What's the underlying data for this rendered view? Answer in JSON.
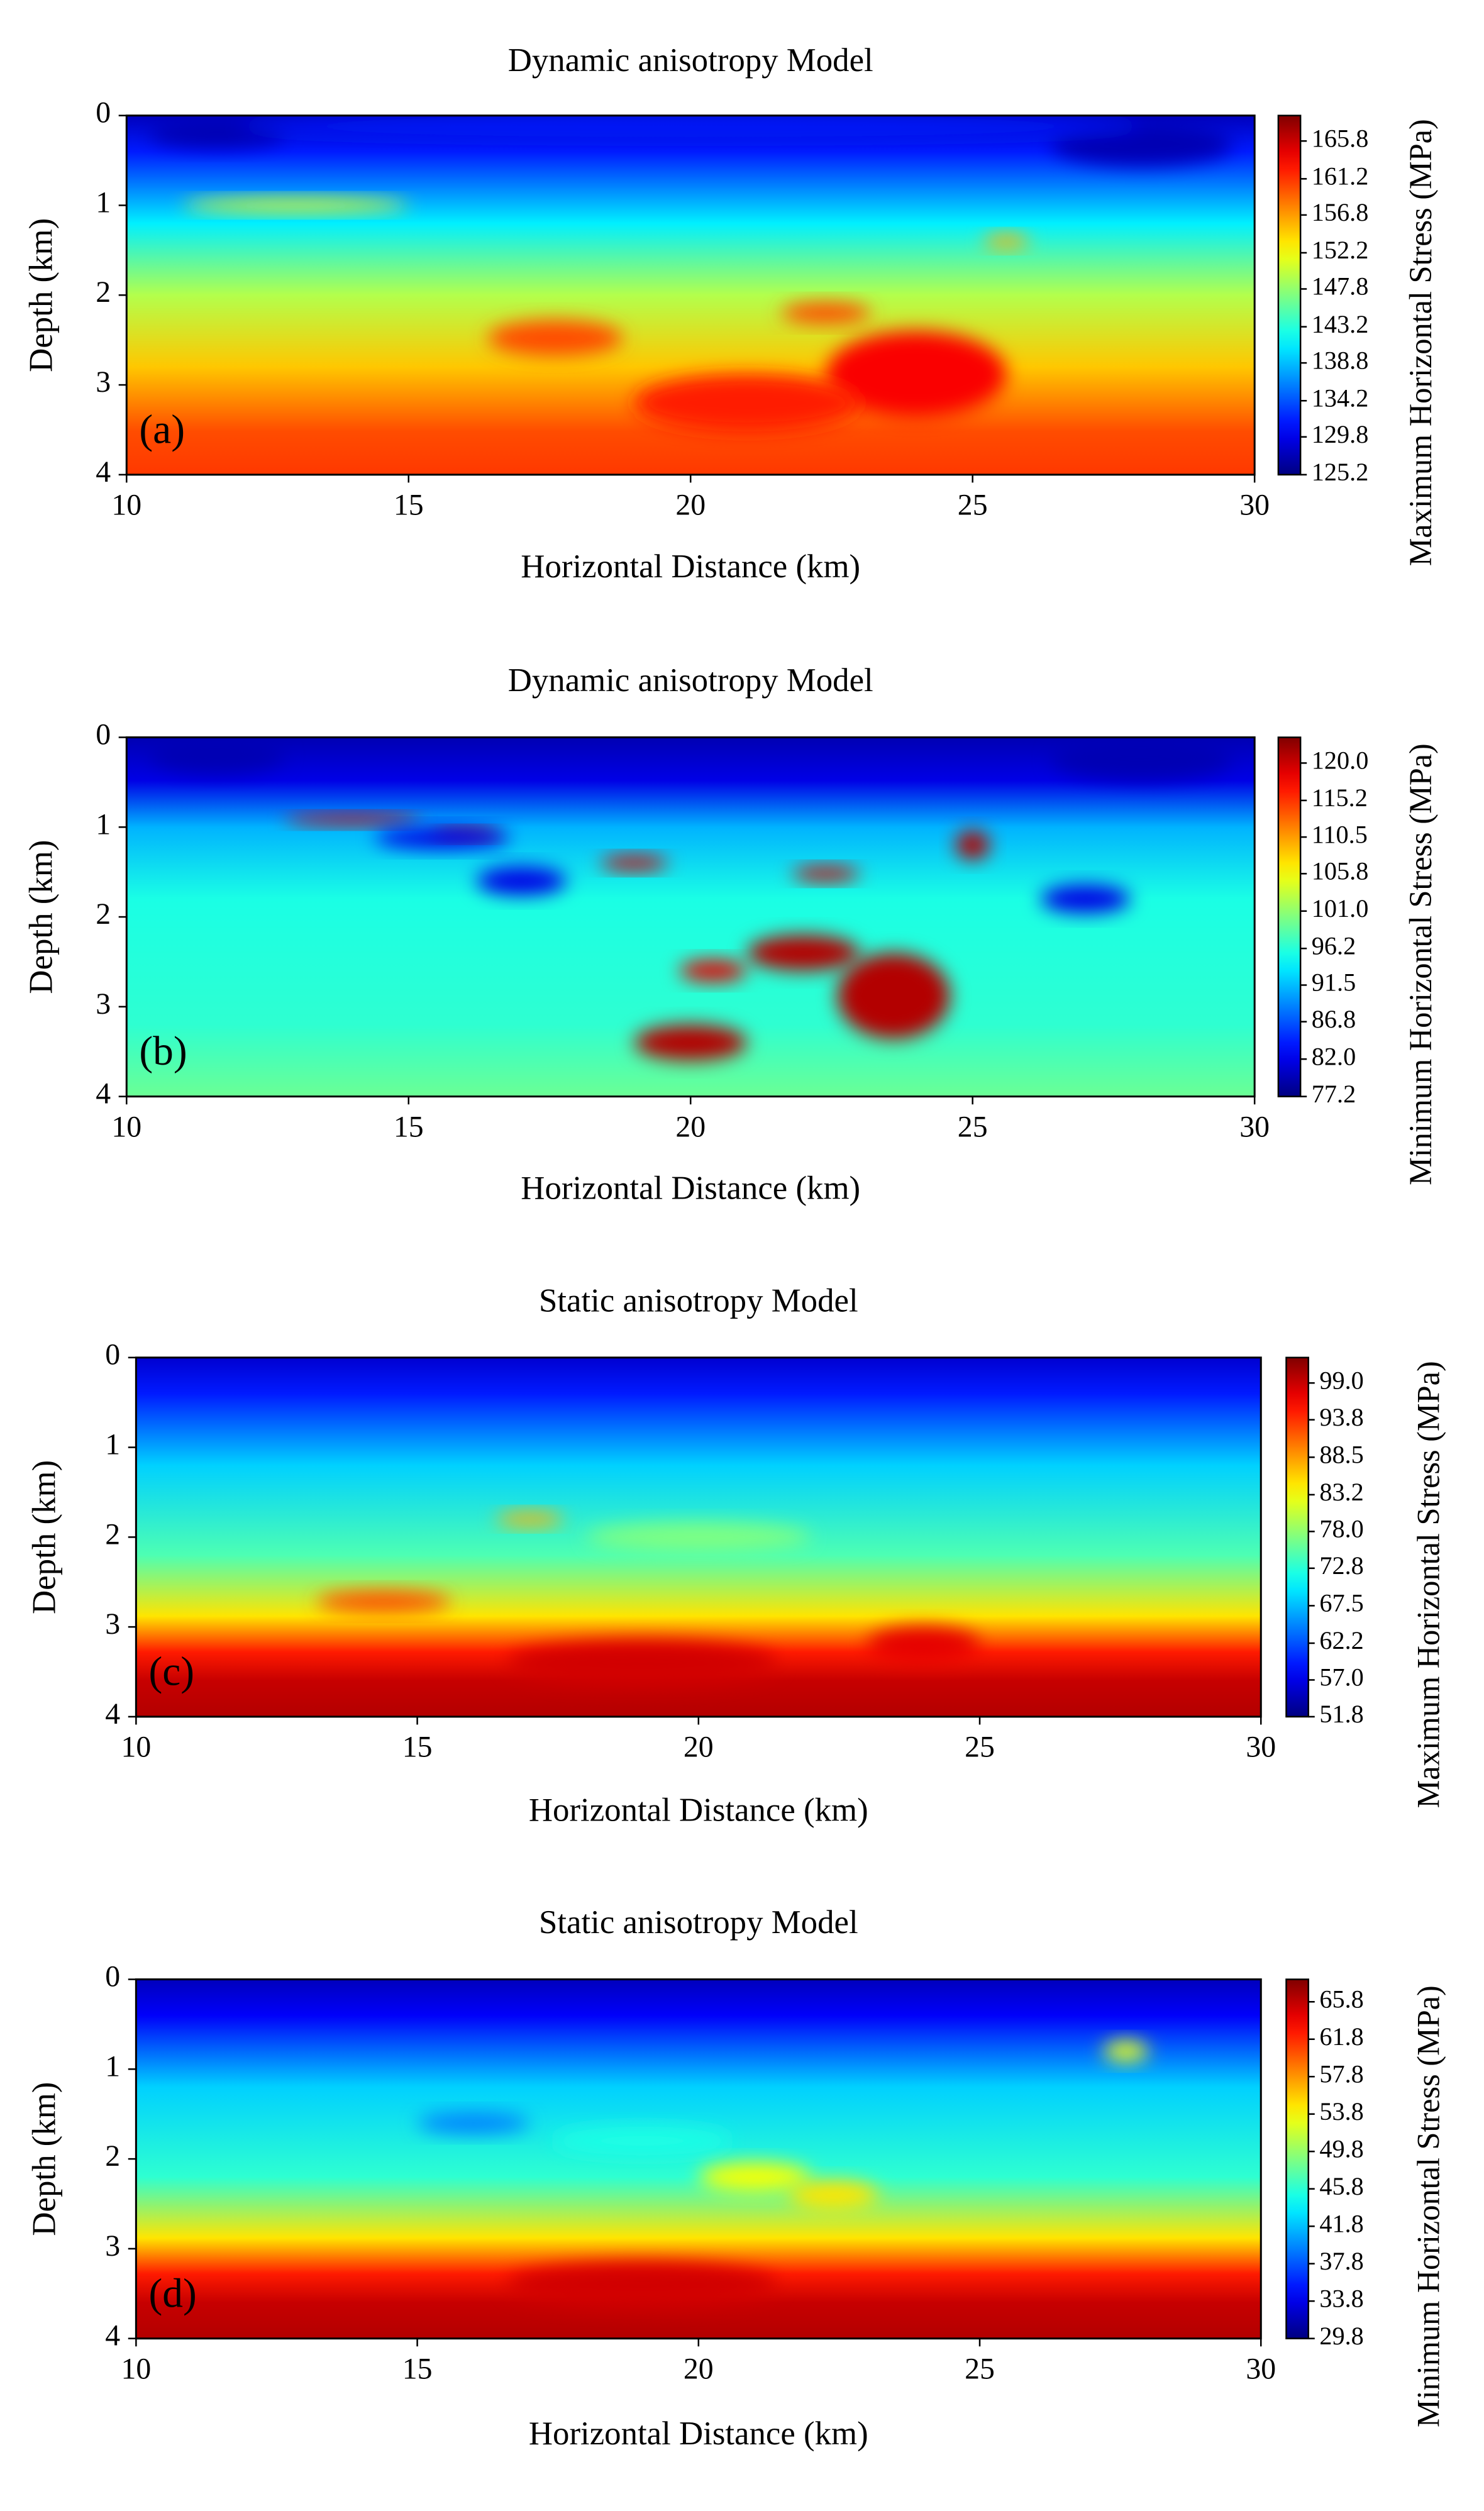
{
  "chart_data": [
    {
      "type": "heatmap",
      "title": "Dynamic anisotropy Model",
      "xlabel": "Horizontal Distance (km)",
      "ylabel": "Depth (km)",
      "panel_label": "(a)",
      "xlim": [
        10,
        30
      ],
      "xticks": [
        10,
        15,
        20,
        25,
        30
      ],
      "ylim": [
        4,
        0
      ],
      "yticks": [
        0,
        1,
        2,
        3,
        4
      ],
      "colormap": "jet",
      "colorbar_label": "Maximum Horizontal Stress (MPa)",
      "colorbar_lim": [
        125.2,
        168.9
      ],
      "colorbar_ticks": [
        125.2,
        129.8,
        134.2,
        138.8,
        143.2,
        147.8,
        152.2,
        156.8,
        161.2,
        165.8
      ]
    },
    {
      "type": "heatmap",
      "title": "Dynamic anisotropy Model",
      "xlabel": "Horizontal Distance (km)",
      "ylabel": "Depth (km)",
      "panel_label": "(b)",
      "xlim": [
        10,
        30
      ],
      "xticks": [
        10,
        15,
        20,
        25,
        30
      ],
      "ylim": [
        4,
        0
      ],
      "yticks": [
        0,
        1,
        2,
        3,
        4
      ],
      "colormap": "jet",
      "colorbar_label": "Minimum Horizontal Stress (MPa)",
      "colorbar_lim": [
        77.2,
        123.3
      ],
      "colorbar_ticks": [
        77.2,
        {
          "value": 82,
          "label": "82.0"
        },
        86.8,
        91.5,
        96.2,
        {
          "value": 101,
          "label": "101.0"
        },
        105.8,
        110.5,
        115.2,
        {
          "value": 120,
          "label": "120.0"
        }
      ]
    },
    {
      "type": "heatmap",
      "title": "Static anisotropy Model",
      "xlabel": "Horizontal Distance (km)",
      "ylabel": "Depth (km)",
      "panel_label": "(c)",
      "xlim": [
        10,
        30
      ],
      "xticks": [
        10,
        15,
        20,
        25,
        30
      ],
      "ylim": [
        4,
        0
      ],
      "yticks": [
        0,
        1,
        2,
        3,
        4
      ],
      "colormap": "jet",
      "colorbar_label": "Maximum Horizontal Stress (MPa)",
      "colorbar_lim": [
        51.8,
        102.6
      ],
      "colorbar_ticks": [
        51.8,
        {
          "value": 57,
          "label": "57.0"
        },
        62.2,
        67.5,
        72.8,
        {
          "value": 78,
          "label": "78.0"
        },
        83.2,
        88.5,
        93.8,
        {
          "value": 99,
          "label": "99.0"
        }
      ]
    },
    {
      "type": "heatmap",
      "title": "Static anisotropy Model",
      "xlabel": "Horizontal Distance (km)",
      "ylabel": "Depth (km)",
      "panel_label": "(d)",
      "xlim": [
        10,
        30
      ],
      "xticks": [
        10,
        15,
        20,
        25,
        30
      ],
      "ylim": [
        4,
        0
      ],
      "yticks": [
        0,
        1,
        2,
        3,
        4
      ],
      "colormap": "jet",
      "colorbar_label": "Minimum Horizontal Stress (MPa)",
      "colorbar_lim": [
        29.8,
        68.2
      ],
      "colorbar_ticks": [
        29.8,
        33.8,
        37.8,
        41.8,
        45.8,
        49.8,
        53.8,
        57.8,
        61.8,
        65.8
      ]
    }
  ]
}
